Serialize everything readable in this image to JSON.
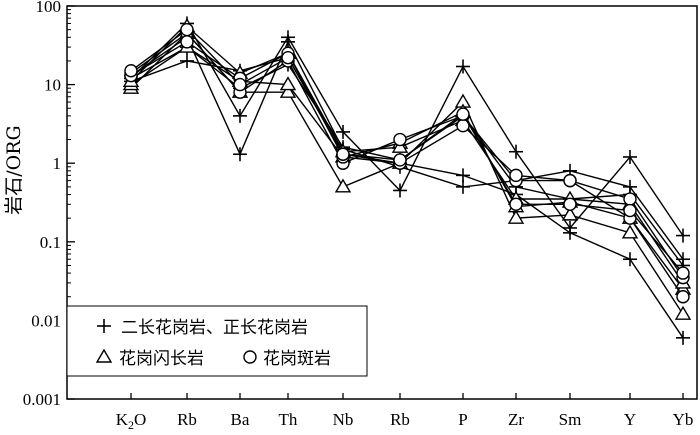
{
  "chart_data": {
    "type": "line",
    "title": "",
    "xlabel": "",
    "ylabel": "岩石/ORG",
    "yscale": "log",
    "ylim": [
      0.001,
      100
    ],
    "yticks": [
      {
        "value": 100,
        "label": "100"
      },
      {
        "value": 10,
        "label": "10"
      },
      {
        "value": 1,
        "label": "1"
      },
      {
        "value": 0.1,
        "label": "0.1"
      },
      {
        "value": 0.01,
        "label": "0.01"
      },
      {
        "value": 0.001,
        "label": "0.001"
      }
    ],
    "categories": [
      "K2O",
      "Rb",
      "Ba",
      "Th",
      "Nb",
      "Rb",
      "P",
      "Zr",
      "Sm",
      "Y",
      "Yb"
    ],
    "legend": {
      "placement": "bottom-left",
      "entries": [
        {
          "marker": "plus",
          "label": "二长花岗岩、正长花岗岩"
        },
        {
          "marker": "triangle",
          "label": "花岗闪长岩"
        },
        {
          "marker": "circle",
          "label": "花岗斑岩"
        }
      ]
    },
    "series": [
      {
        "marker": "plus",
        "values": [
          12,
          60,
          4,
          40,
          2.5,
          0.45,
          17,
          1.4,
          0.15,
          1.2,
          0.12
        ]
      },
      {
        "marker": "plus",
        "values": [
          13,
          40,
          1.3,
          35,
          1.5,
          0.9,
          0.5,
          0.6,
          0.8,
          0.5,
          0.06
        ]
      },
      {
        "marker": "plus",
        "values": [
          11,
          20,
          15,
          22,
          1.3,
          1.0,
          0.7,
          0.4,
          0.13,
          0.06,
          0.006
        ]
      },
      {
        "marker": "plus",
        "values": [
          12,
          30,
          9,
          18,
          1.6,
          1.1,
          4.0,
          0.5,
          0.35,
          0.4,
          0.05
        ]
      },
      {
        "marker": "triangle",
        "values": [
          9,
          45,
          8,
          8,
          0.5,
          1.0,
          6.0,
          0.2,
          0.22,
          0.13,
          0.012
        ]
      },
      {
        "marker": "triangle",
        "values": [
          10,
          30,
          11,
          10,
          1.2,
          1.8,
          4.5,
          0.28,
          0.32,
          0.2,
          0.025
        ]
      },
      {
        "marker": "triangle",
        "values": [
          11,
          55,
          14,
          25,
          1.4,
          1.6,
          3.5,
          0.35,
          0.35,
          0.3,
          0.03
        ]
      },
      {
        "marker": "circle",
        "values": [
          14,
          45,
          8,
          20,
          1.0,
          2.0,
          4.0,
          0.6,
          0.6,
          0.2,
          0.02
        ]
      },
      {
        "marker": "circle",
        "values": [
          13,
          35,
          12,
          25,
          1.2,
          1.0,
          3.0,
          0.7,
          0.6,
          0.35,
          0.035
        ]
      },
      {
        "marker": "circle",
        "values": [
          15,
          50,
          10,
          22,
          1.3,
          1.1,
          4.2,
          0.3,
          0.3,
          0.25,
          0.04
        ]
      }
    ]
  }
}
